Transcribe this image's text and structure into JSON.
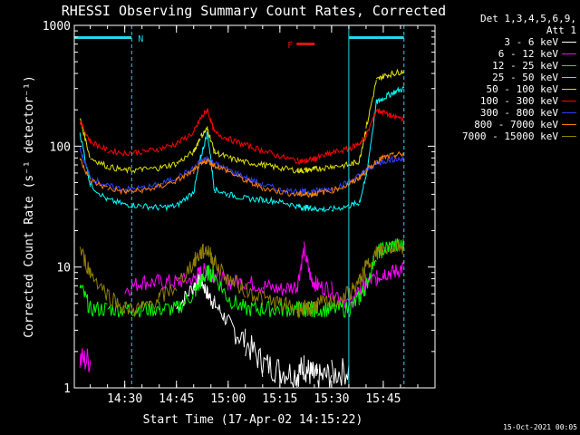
{
  "chart_data": {
    "type": "line",
    "title": "RHESSI Observing Summary Count Rates, Corrected",
    "xlabel": "Start Time (17-Apr-02 14:15:22)",
    "ylabel": "Corrected Count Rate (s⁻¹ detector⁻¹)",
    "y_scale": "log",
    "ylim": [
      1,
      1000
    ],
    "y_ticks": [
      "1",
      "10",
      "100",
      "1000"
    ],
    "xlim": [
      "14:15:22",
      "16:00"
    ],
    "x_ticks": [
      "14:30",
      "14:45",
      "15:00",
      "15:15",
      "15:30",
      "15:45"
    ],
    "legend_header": [
      "Det 1,3,4,5,6,9,",
      "Att 1"
    ],
    "legend_position": "right",
    "footer": "15-Oct-2021 00:05",
    "bars": [
      {
        "label": "N",
        "color": "#20d8e8",
        "x_start": "14:15",
        "x_end": "14:32"
      },
      {
        "label": "",
        "color": "#20d8e8",
        "x_start": "15:35",
        "x_end": "15:51"
      }
    ],
    "flare_marker": {
      "label": "F",
      "color": "#e01010",
      "x": "15:23"
    },
    "vlines": [
      {
        "x": "14:32",
        "style": "dashed",
        "color": "#20d8e8"
      },
      {
        "x": "15:35",
        "style": "solid",
        "color": "#20d8e8"
      },
      {
        "x": "15:51",
        "style": "dashed",
        "color": "#20d8e8"
      }
    ],
    "x_times": [
      "14:17",
      "14:20",
      "14:25",
      "14:30",
      "14:35",
      "14:40",
      "14:45",
      "14:50",
      "14:52",
      "14:54",
      "14:56",
      "15:00",
      "15:05",
      "15:10",
      "15:15",
      "15:20",
      "15:22",
      "15:24",
      "15:26",
      "15:30",
      "15:35",
      "15:38",
      "15:40",
      "15:43",
      "15:45",
      "15:48",
      "15:51"
    ],
    "series": [
      {
        "name": "3 - 6 keV",
        "color": "#ffffff",
        "values": [
          null,
          null,
          null,
          null,
          null,
          null,
          4.5,
          7,
          8,
          6,
          5,
          3.5,
          2.4,
          1.6,
          1.4,
          1.3,
          1.5,
          1.3,
          1.2,
          1.3,
          1.4,
          null,
          null,
          null,
          null,
          null,
          null
        ]
      },
      {
        "name": "6 - 12 keV",
        "color": "#ff00ff",
        "values": [
          1.7,
          1.7,
          null,
          6.5,
          7.5,
          7.5,
          7.5,
          8,
          9,
          9.5,
          8.5,
          7.5,
          7.5,
          7,
          6.5,
          7,
          14,
          8,
          7,
          6.5,
          5,
          6,
          7.5,
          8,
          9,
          9,
          10
        ]
      },
      {
        "name": "12 - 25 keV",
        "color": "#00ff00",
        "values": [
          7,
          4.5,
          4.5,
          4.5,
          4.5,
          4.5,
          4.5,
          6,
          7.5,
          9,
          8.5,
          5.5,
          4.5,
          4.5,
          4.5,
          4.5,
          4.5,
          4.5,
          4.5,
          4.5,
          4.5,
          5.5,
          7,
          13,
          14,
          15,
          15
        ]
      },
      {
        "name": "25 - 50 keV",
        "color": "#00ffff",
        "values": [
          130,
          48,
          36,
          33,
          32,
          31,
          32,
          42,
          80,
          130,
          44,
          40,
          37,
          36,
          35,
          32,
          31,
          31,
          30,
          30,
          32,
          34,
          55,
          230,
          250,
          280,
          300
        ]
      },
      {
        "name": "50 - 100 keV",
        "color": "#e0e000",
        "values": [
          170,
          80,
          68,
          63,
          64,
          66,
          72,
          90,
          120,
          140,
          90,
          80,
          74,
          70,
          66,
          63,
          63,
          64,
          65,
          68,
          70,
          75,
          140,
          350,
          380,
          400,
          420
        ]
      },
      {
        "name": "100 - 300 keV",
        "color": "#ff0000",
        "values": [
          160,
          110,
          92,
          88,
          90,
          95,
          105,
          130,
          170,
          200,
          130,
          115,
          102,
          92,
          82,
          76,
          75,
          77,
          80,
          88,
          95,
          105,
          120,
          200,
          190,
          175,
          170
        ]
      },
      {
        "name": "300 - 800 keV",
        "color": "#3040ff",
        "values": [
          95,
          55,
          47,
          44,
          45,
          48,
          55,
          65,
          75,
          80,
          72,
          64,
          55,
          48,
          44,
          42,
          42,
          42,
          43,
          45,
          50,
          57,
          63,
          72,
          75,
          78,
          78
        ]
      },
      {
        "name": "800 - 7000 keV",
        "color": "#ff8000",
        "values": [
          80,
          52,
          45,
          42,
          43,
          46,
          52,
          62,
          70,
          76,
          70,
          62,
          52,
          45,
          42,
          40,
          40,
          40,
          41,
          43,
          48,
          55,
          62,
          75,
          80,
          84,
          86
        ]
      },
      {
        "name": "7000 - 15000 keV",
        "color": "#908000",
        "values": [
          14,
          9,
          6,
          4.5,
          4.5,
          5.5,
          7,
          11,
          13,
          14,
          11,
          8,
          6.5,
          5.5,
          5,
          4.5,
          4.5,
          4.5,
          5,
          5,
          6,
          7.5,
          10,
          13,
          14,
          15,
          15
        ]
      }
    ]
  }
}
